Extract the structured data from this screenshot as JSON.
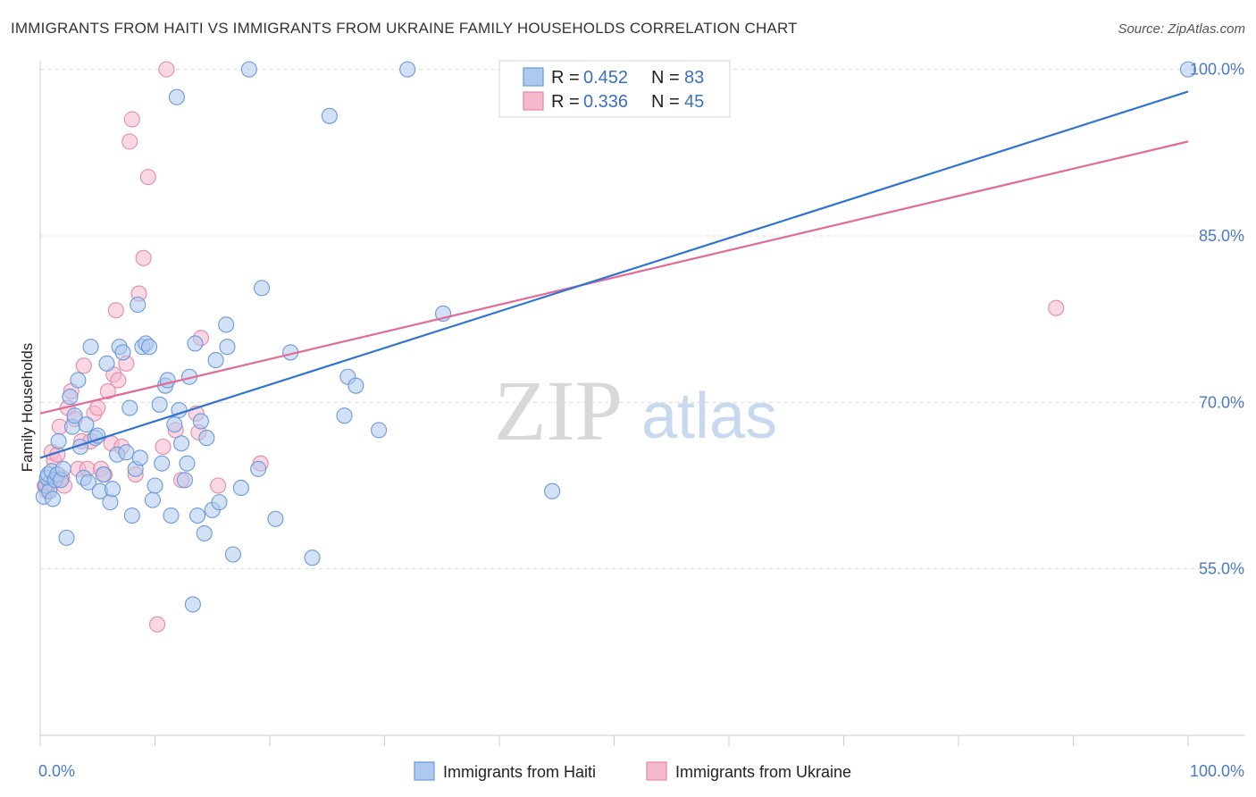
{
  "title": "IMMIGRANTS FROM HAITI VS IMMIGRANTS FROM UKRAINE FAMILY HOUSEHOLDS CORRELATION CHART",
  "source": "Source: ZipAtlas.com",
  "watermark": {
    "zip": "ZIP",
    "atlas": "atlas"
  },
  "colors": {
    "haiti_fill": "#aec8ef",
    "haiti_stroke": "#6a99d8",
    "haiti_line": "#2f74d0",
    "ukraine_fill": "#f6b8cc",
    "ukraine_stroke": "#e48aa8",
    "ukraine_line": "#e06a98",
    "grid": "#dddddd",
    "tick_text": "#4a79c7"
  },
  "legend": {
    "rows": [
      {
        "r_label": "R =",
        "r_value": "0.452",
        "n_label": "N =",
        "n_value": "83"
      },
      {
        "r_label": "R =",
        "r_value": "0.336",
        "n_label": "N =",
        "n_value": "45"
      }
    ]
  },
  "bottom_legend": {
    "haiti": "Immigrants from Haiti",
    "ukraine": "Immigrants from Ukraine"
  },
  "chart_data": {
    "type": "scatter",
    "xlabel": "",
    "ylabel": "Family Households",
    "xlim": [
      0,
      100
    ],
    "ylim": [
      40,
      101.5
    ],
    "x_tick_labels": [
      "0.0%",
      "100.0%"
    ],
    "y_ticks": [
      55,
      70,
      85,
      100
    ],
    "y_tick_labels": [
      "55.0%",
      "70.0%",
      "85.0%",
      "100.0%"
    ],
    "series": [
      {
        "name": "Immigrants from Haiti",
        "r": 0.452,
        "n": 83,
        "trend": {
          "x": [
            0,
            100
          ],
          "y": [
            65.0,
            98.0
          ]
        },
        "points": [
          [
            0.3,
            61.5
          ],
          [
            0.5,
            62.5
          ],
          [
            0.6,
            63.2
          ],
          [
            0.7,
            63.5
          ],
          [
            0.8,
            62.0
          ],
          [
            1.0,
            63.8
          ],
          [
            1.1,
            61.3
          ],
          [
            1.3,
            63.0
          ],
          [
            1.5,
            63.5
          ],
          [
            1.6,
            66.5
          ],
          [
            1.8,
            63.0
          ],
          [
            2.0,
            64.0
          ],
          [
            2.3,
            57.8
          ],
          [
            2.6,
            70.5
          ],
          [
            2.8,
            67.8
          ],
          [
            3.0,
            68.8
          ],
          [
            3.3,
            72.0
          ],
          [
            3.5,
            66.0
          ],
          [
            3.8,
            63.2
          ],
          [
            4.0,
            68.0
          ],
          [
            4.2,
            62.8
          ],
          [
            4.4,
            75.0
          ],
          [
            4.8,
            66.8
          ],
          [
            5.0,
            67.0
          ],
          [
            5.2,
            62.0
          ],
          [
            5.5,
            63.5
          ],
          [
            5.8,
            73.5
          ],
          [
            6.1,
            61.0
          ],
          [
            6.3,
            62.2
          ],
          [
            6.7,
            65.3
          ],
          [
            6.9,
            75.0
          ],
          [
            7.2,
            74.5
          ],
          [
            7.5,
            65.5
          ],
          [
            7.8,
            69.5
          ],
          [
            8.0,
            59.8
          ],
          [
            8.3,
            64.0
          ],
          [
            8.5,
            78.8
          ],
          [
            8.7,
            65.0
          ],
          [
            8.9,
            75.0
          ],
          [
            9.2,
            75.3
          ],
          [
            9.5,
            75.0
          ],
          [
            9.8,
            61.2
          ],
          [
            10.0,
            62.5
          ],
          [
            10.4,
            69.8
          ],
          [
            10.6,
            64.5
          ],
          [
            10.9,
            71.5
          ],
          [
            11.1,
            72.0
          ],
          [
            11.4,
            59.8
          ],
          [
            11.7,
            68.0
          ],
          [
            11.9,
            97.5
          ],
          [
            12.1,
            69.3
          ],
          [
            12.3,
            66.3
          ],
          [
            12.6,
            63.0
          ],
          [
            12.8,
            64.5
          ],
          [
            13.0,
            72.3
          ],
          [
            13.3,
            51.8
          ],
          [
            13.5,
            75.3
          ],
          [
            13.7,
            59.8
          ],
          [
            14.0,
            68.3
          ],
          [
            14.3,
            58.2
          ],
          [
            14.5,
            66.8
          ],
          [
            15.0,
            60.3
          ],
          [
            15.3,
            73.8
          ],
          [
            15.6,
            61.0
          ],
          [
            16.2,
            77.0
          ],
          [
            16.3,
            75.0
          ],
          [
            16.8,
            56.3
          ],
          [
            17.5,
            62.3
          ],
          [
            18.2,
            100.0
          ],
          [
            19.0,
            64.0
          ],
          [
            19.3,
            80.3
          ],
          [
            20.5,
            59.5
          ],
          [
            21.8,
            74.5
          ],
          [
            23.7,
            56.0
          ],
          [
            25.2,
            95.8
          ],
          [
            26.5,
            68.8
          ],
          [
            26.8,
            72.3
          ],
          [
            27.5,
            71.5
          ],
          [
            29.5,
            67.5
          ],
          [
            32.0,
            100.0
          ],
          [
            35.1,
            78.0
          ],
          [
            44.6,
            62.0
          ],
          [
            100.0,
            100.0
          ]
        ]
      },
      {
        "name": "Immigrants from Ukraine",
        "r": 0.336,
        "n": 45,
        "trend": {
          "x": [
            0,
            100
          ],
          "y": [
            69.0,
            93.5
          ]
        },
        "points": [
          [
            0.4,
            62.5
          ],
          [
            0.6,
            62.0
          ],
          [
            0.8,
            62.8
          ],
          [
            1.0,
            65.5
          ],
          [
            1.2,
            64.8
          ],
          [
            1.5,
            65.3
          ],
          [
            1.7,
            67.8
          ],
          [
            1.9,
            63.2
          ],
          [
            2.1,
            62.5
          ],
          [
            2.4,
            69.5
          ],
          [
            2.7,
            71.0
          ],
          [
            3.0,
            68.5
          ],
          [
            3.3,
            64.0
          ],
          [
            3.6,
            66.5
          ],
          [
            3.8,
            73.3
          ],
          [
            4.1,
            64.0
          ],
          [
            4.4,
            66.5
          ],
          [
            4.7,
            69.0
          ],
          [
            5.0,
            69.5
          ],
          [
            5.3,
            64.0
          ],
          [
            5.6,
            63.5
          ],
          [
            5.9,
            71.0
          ],
          [
            6.2,
            66.3
          ],
          [
            6.4,
            72.5
          ],
          [
            6.6,
            78.3
          ],
          [
            6.8,
            72.0
          ],
          [
            7.1,
            66.0
          ],
          [
            7.5,
            73.5
          ],
          [
            7.8,
            93.5
          ],
          [
            8.0,
            95.5
          ],
          [
            8.3,
            63.5
          ],
          [
            8.6,
            79.8
          ],
          [
            9.0,
            83.0
          ],
          [
            9.4,
            90.3
          ],
          [
            10.2,
            50.0
          ],
          [
            10.7,
            66.0
          ],
          [
            11.0,
            100.0
          ],
          [
            11.8,
            67.5
          ],
          [
            12.3,
            63.0
          ],
          [
            13.6,
            69.0
          ],
          [
            13.8,
            67.3
          ],
          [
            14.0,
            75.8
          ],
          [
            15.5,
            62.5
          ],
          [
            19.2,
            64.5
          ],
          [
            88.5,
            78.5
          ]
        ]
      }
    ]
  }
}
